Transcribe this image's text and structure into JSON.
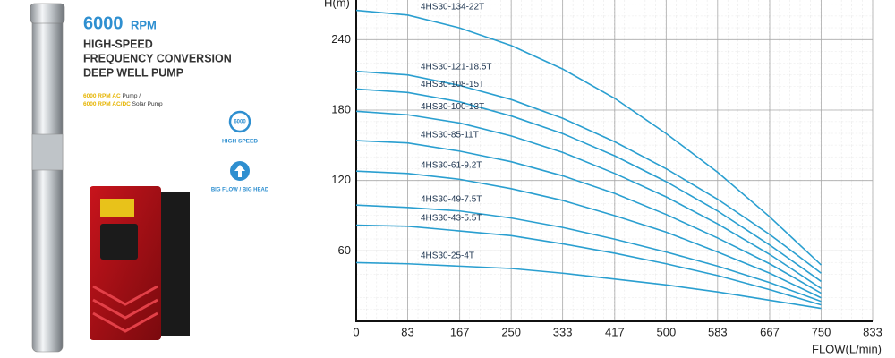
{
  "header": {
    "rpm_number": "6000",
    "rpm_unit": "RPM",
    "title_lines": [
      "HIGH-SPEED",
      "FREQUENCY CONVERSION",
      "DEEP WELL PUMP"
    ],
    "notes": [
      {
        "highlight": "6000 RPM AC",
        "text": " Pump /"
      },
      {
        "highlight": "6000 RPM AC/DC",
        "text": " Solar Pump"
      }
    ],
    "icon_text": "6000",
    "features": [
      "HIGH SPEED",
      "BIG FLOW / BIG HEAD"
    ]
  },
  "chart_data": {
    "type": "line",
    "y_label": "H(m)",
    "x_label": "FLOW(L/min)",
    "x": [
      0,
      83,
      167,
      250,
      333,
      417,
      500,
      583,
      667,
      750
    ],
    "xlim": [
      0,
      833
    ],
    "xticks": [
      0,
      83,
      167,
      250,
      333,
      417,
      500,
      583,
      667,
      750,
      833
    ],
    "ylim": [
      0,
      270
    ],
    "yticks": [
      60,
      120,
      180,
      240
    ],
    "grid": true,
    "series": [
      {
        "name": "4HS30-134-22T",
        "color": "#2a9fd0",
        "values": [
          265,
          261,
          250,
          235,
          215,
          190,
          160,
          127,
          89,
          48
        ]
      },
      {
        "name": "4HS30-121-18.5T",
        "color": "#2a9fd0",
        "values": [
          213,
          210,
          201,
          189,
          173,
          153,
          130,
          104,
          74,
          41
        ]
      },
      {
        "name": "4HS30-108-15T",
        "color": "#2a9fd0",
        "values": [
          198,
          195,
          187,
          175,
          160,
          141,
          119,
          94,
          65,
          34
        ]
      },
      {
        "name": "4HS30-100-13T",
        "color": "#2a9fd0",
        "values": [
          179,
          176,
          169,
          158,
          144,
          126,
          106,
          83,
          57,
          28
        ]
      },
      {
        "name": "4HS30-85-11T",
        "color": "#2a9fd0",
        "values": [
          154,
          152,
          145,
          136,
          124,
          109,
          91,
          71,
          49,
          24
        ]
      },
      {
        "name": "4HS30-61-9.2T",
        "color": "#2a9fd0",
        "values": [
          128,
          126,
          121,
          113,
          103,
          90,
          76,
          59,
          41,
          20
        ]
      },
      {
        "name": "4HS30-49-7.5T",
        "color": "#2a9fd0",
        "values": [
          99,
          97,
          94,
          88,
          80,
          70,
          59,
          47,
          33,
          17
        ]
      },
      {
        "name": "4HS30-43-5.5T",
        "color": "#2a9fd0",
        "values": [
          82,
          81,
          77,
          73,
          66,
          58,
          49,
          39,
          27,
          14
        ]
      },
      {
        "name": "4HS30-25-4T",
        "color": "#2a9fd0",
        "values": [
          50,
          49,
          47,
          45,
          41,
          36,
          31,
          25,
          18,
          11
        ]
      }
    ]
  }
}
